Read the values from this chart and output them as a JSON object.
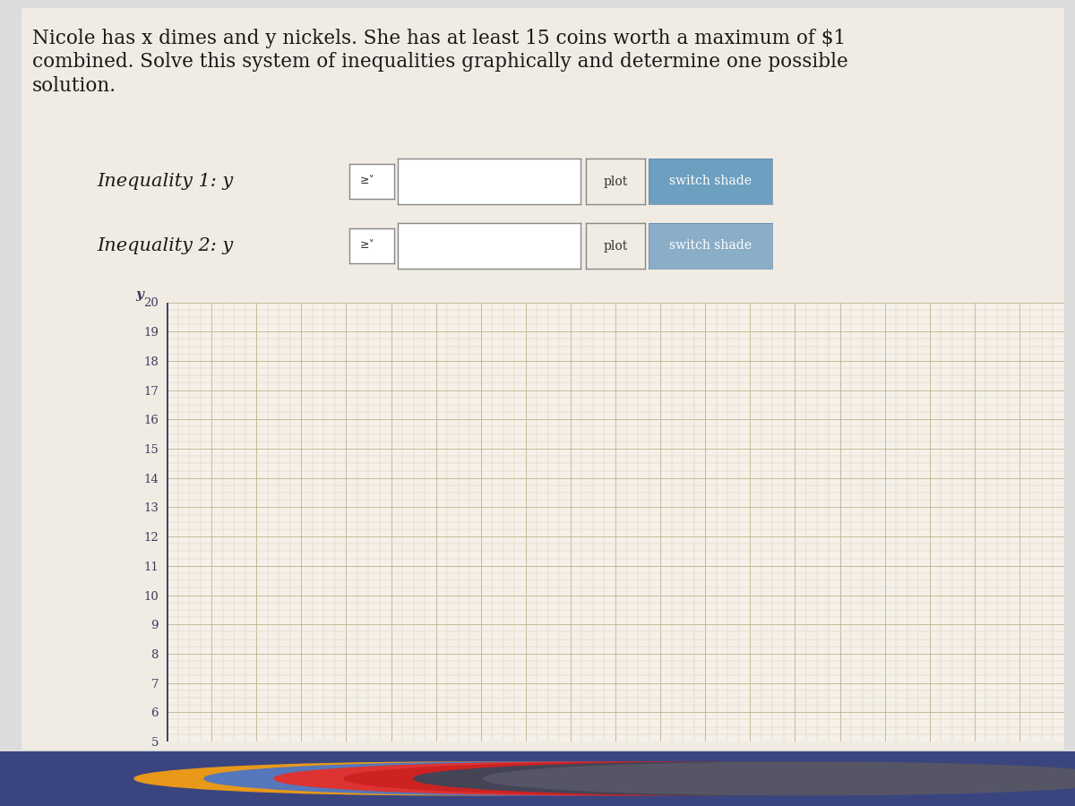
{
  "title_line1": "Nicole has x dimes and y nickels. She has at least 15 coins worth a maximum of $1",
  "title_line2": "combined. Solve this system of inequalities graphically and determine one possible",
  "title_line3": "solution.",
  "title_fontsize": 15.5,
  "title_color": "#1a1a1a",
  "background_color": "#dcdcdc",
  "plot_bg_color": "#f5f0e8",
  "grid_major_color": "#c0b090",
  "grid_minor_color": "#d8cdb0",
  "axis_color": "#3a3a5c",
  "label_color": "#3a3a5c",
  "ineq1_label": "Inequality 1: y",
  "ineq2_label": "Inequality 2: y",
  "ineq_sign": "≥˅",
  "btn1_plot_color": "#8baec8",
  "btn1_shade_color": "#6d9fc0",
  "btn2_plot_color": "#c8c8c8",
  "btn2_shade_color": "#8baec8",
  "btn_text_color": "#ffffff",
  "btn_dark_text": "#333333",
  "y_label": "y",
  "y_min": 5,
  "y_max": 20,
  "x_min": 0,
  "x_max": 20,
  "taskbar_color": "#3a4580",
  "white_panel_color": "#f0ece4",
  "cursor_color": "#1a1a1a"
}
